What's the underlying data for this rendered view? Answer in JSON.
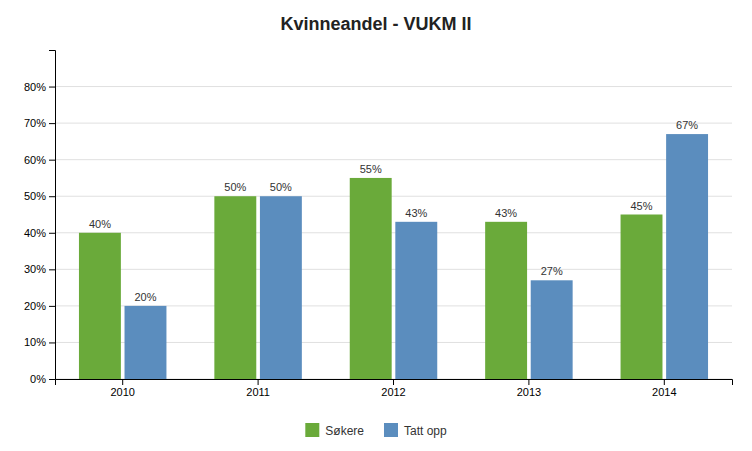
{
  "chart_data": {
    "type": "bar",
    "title": "Kvinneandel - VUKM II",
    "categories": [
      "2010",
      "2011",
      "2012",
      "2013",
      "2014"
    ],
    "series": [
      {
        "name": "Søkere",
        "color": "#6aaa3a",
        "values": [
          0.4,
          0.5,
          0.55,
          0.43,
          0.45
        ],
        "value_labels": [
          "40%",
          "50%",
          "55%",
          "43%",
          "45%"
        ]
      },
      {
        "name": "Tatt opp",
        "color": "#5b8dbe",
        "values": [
          0.2,
          0.5,
          0.43,
          0.27,
          0.67
        ],
        "value_labels": [
          "20%",
          "50%",
          "43%",
          "27%",
          "67%"
        ]
      }
    ],
    "ylim": [
      0,
      0.9
    ],
    "yticks": [
      {
        "value": 0.0,
        "label": "0%"
      },
      {
        "value": 0.1,
        "label": "10%"
      },
      {
        "value": 0.2,
        "label": "20%"
      },
      {
        "value": 0.3,
        "label": "30%"
      },
      {
        "value": 0.4,
        "label": "40%"
      },
      {
        "value": 0.5,
        "label": "50%"
      },
      {
        "value": 0.6,
        "label": "60%"
      },
      {
        "value": 0.7,
        "label": "70%"
      },
      {
        "value": 0.8,
        "label": "80%"
      }
    ],
    "grid": true,
    "legend": "bottom",
    "data_labels": true
  }
}
